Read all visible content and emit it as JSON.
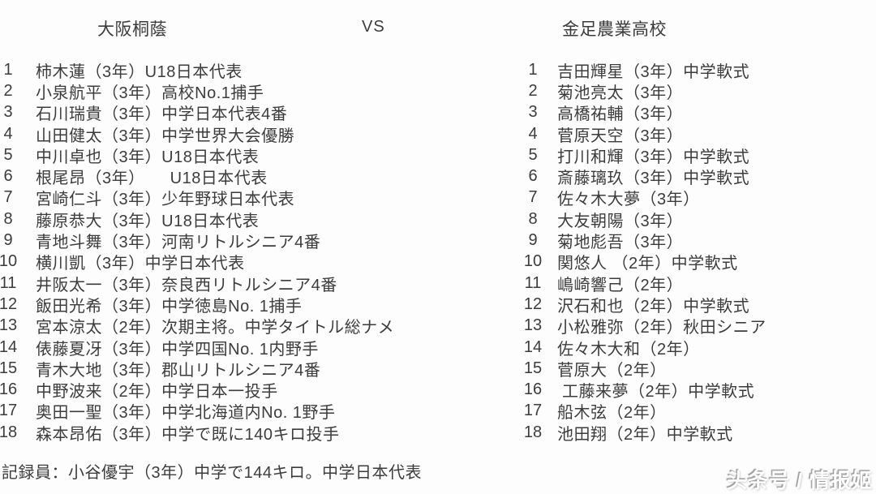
{
  "colors": {
    "background": "#fdfdfd",
    "text": "#3c3c3c",
    "watermark_fill": "#ffffff",
    "watermark_shadow": "#9a9a9a"
  },
  "header": {
    "vs": "VS"
  },
  "teams": [
    {
      "name": "大阪桐蔭",
      "players": [
        {
          "no": "1",
          "label": "柿木蓮（3年）U18日本代表"
        },
        {
          "no": "2",
          "label": "小泉航平（3年）高校No.1捕手"
        },
        {
          "no": "3",
          "label": "石川瑞貴（3年）中学日本代表4番"
        },
        {
          "no": "4",
          "label": "山田健太（3年）中学世界大会優勝"
        },
        {
          "no": "5",
          "label": "中川卓也（3年）U18日本代表"
        },
        {
          "no": "6",
          "label": "根尾昂（3年）　　U18日本代表"
        },
        {
          "no": "7",
          "label": "宮崎仁斗（3年）少年野球日本代表"
        },
        {
          "no": "8",
          "label": "藤原恭大（3年）U18日本代表"
        },
        {
          "no": "9",
          "label": "青地斗舞（3年）河南リトルシニア4番"
        },
        {
          "no": "10",
          "label": "横川凱（3年）中学日本代表"
        },
        {
          "no": "11",
          "label": "井阪太一（3年）奈良西リトルシニア4番"
        },
        {
          "no": "12",
          "label": "飯田光希（3年）中学徳島No. 1捕手"
        },
        {
          "no": "13",
          "label": "宮本涼太（2年）次期主将。中学タイトル総ナメ"
        },
        {
          "no": "14",
          "label": "俵藤夏冴（3年）中学四国No. 1内野手"
        },
        {
          "no": "15",
          "label": "青木大地（3年）郡山リトルシニア4番"
        },
        {
          "no": "16",
          "label": "中野波来（2年）中学日本一投手"
        },
        {
          "no": "17",
          "label": "奥田一聖（3年）中学北海道内No. 1野手"
        },
        {
          "no": "18",
          "label": "森本昂佑（3年）中学で既に140キロ投手"
        }
      ]
    },
    {
      "name": "金足農業高校",
      "players": [
        {
          "no": "1",
          "label": "吉田輝星（3年）中学軟式"
        },
        {
          "no": "2",
          "label": "菊池亮太（3年）"
        },
        {
          "no": "3",
          "label": "高橋祐輔（3年）"
        },
        {
          "no": "4",
          "label": "菅原天空（3年）"
        },
        {
          "no": "5",
          "label": "打川和輝（3年）中学軟式"
        },
        {
          "no": "6",
          "label": "斎藤璃玖（3年）中学軟式"
        },
        {
          "no": "7",
          "label": "佐々木大夢（3年）"
        },
        {
          "no": "8",
          "label": "大友朝陽（3年）"
        },
        {
          "no": "9",
          "label": "菊地彪吾（3年）"
        },
        {
          "no": "10",
          "label": "関悠人 （2年）中学軟式"
        },
        {
          "no": "11",
          "label": "嶋崎響己（2年）"
        },
        {
          "no": "12",
          "label": "沢石和也（2年）中学軟式"
        },
        {
          "no": "13",
          "label": "小松雅弥（2年）秋田シニア"
        },
        {
          "no": "14",
          "label": "佐々木大和（2年）"
        },
        {
          "no": "15",
          "label": "菅原大（2年）"
        },
        {
          "no": "16",
          "label": " 工藤来夢（2年）中学軟式"
        },
        {
          "no": "17",
          "label": "船木弦（2年）"
        },
        {
          "no": "18",
          "label": "池田翔（2年）中学軟式"
        }
      ]
    }
  ],
  "footer": {
    "recorder": "記録員：小谷優宇（3年）中学で144キロ。中学日本代表"
  },
  "watermark": {
    "text": "头条号 / 情报姬"
  }
}
